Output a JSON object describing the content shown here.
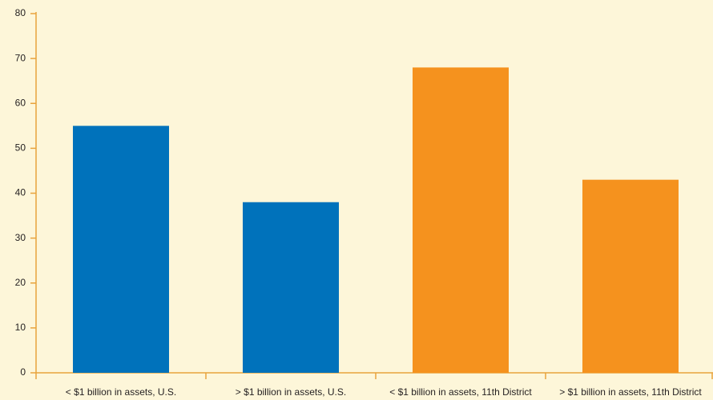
{
  "chart_data": {
    "type": "bar",
    "categories": [
      "< $1 billion in assets, U.S.",
      "> $1 billion in assets, U.S.",
      "< $1 billion in assets, 11th District",
      "> $1 billion in assets, 11th District"
    ],
    "values": [
      55,
      38,
      68,
      43
    ],
    "colors": [
      "#0072bb",
      "#0072bb",
      "#f5921e",
      "#f5921e"
    ],
    "ylim": [
      0,
      80
    ],
    "yticks": [
      0,
      10,
      20,
      30,
      40,
      50,
      60,
      70,
      80
    ],
    "grid": false
  }
}
